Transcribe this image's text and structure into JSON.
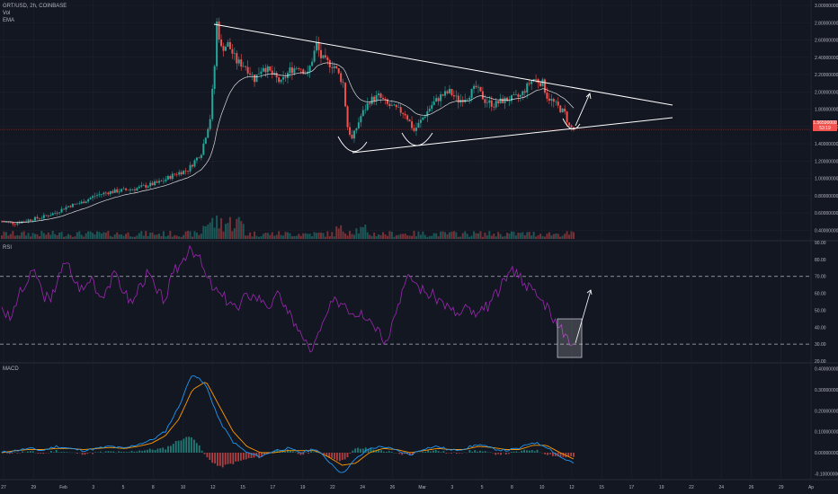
{
  "header": {
    "symbol": "GRT/USD, 2h, COINBASE",
    "indicator1": "Vol",
    "indicator2": "EMA"
  },
  "pane_labels": {
    "rsi": "RSI",
    "macd": "MACD"
  },
  "last_price": {
    "value": "1.56590000",
    "countdown": "53:19",
    "color": "#ef5350"
  },
  "colors": {
    "background": "#131722",
    "grid": "#1e222d",
    "bull": "#26a69a",
    "bear": "#ef5350",
    "rsi_line": "#9c27b0",
    "macd_line": "#2196f3",
    "signal_line": "#ff9800",
    "ema_line": "#ffffff",
    "drawing": "#ffffff"
  },
  "chart_data": [
    {
      "type": "candlestick",
      "pane": "price",
      "title": "GRT/USD, 2h, COINBASE",
      "ylim": [
        0.3,
        3.0
      ],
      "y_ticks": [
        "3.00000000",
        "2.80000000",
        "2.60000000",
        "2.40000000",
        "2.20000000",
        "2.00000000",
        "1.80000000",
        "1.60000000",
        "1.40000000",
        "1.20000000",
        "1.00000000",
        "0.80000000",
        "0.60000000",
        "0.40000000"
      ],
      "x_ticks": [
        "27",
        "29",
        "Feb",
        "3",
        "5",
        "8",
        "10",
        "12",
        "15",
        "17",
        "19",
        "22",
        "24",
        "26",
        "Mar",
        "3",
        "5",
        "8",
        "10",
        "12",
        "15",
        "17",
        "19",
        "22",
        "24",
        "26",
        "29",
        "Ap"
      ],
      "path_points": [
        [
          0,
          0.5
        ],
        [
          6,
          0.48
        ],
        [
          12,
          0.52
        ],
        [
          18,
          0.55
        ],
        [
          24,
          0.6
        ],
        [
          30,
          0.68
        ],
        [
          36,
          0.72
        ],
        [
          42,
          0.8
        ],
        [
          48,
          0.84
        ],
        [
          54,
          0.86
        ],
        [
          60,
          0.88
        ],
        [
          66,
          0.92
        ],
        [
          72,
          0.96
        ],
        [
          78,
          1.05
        ],
        [
          84,
          1.1
        ],
        [
          90,
          1.3
        ],
        [
          94,
          1.7
        ],
        [
          96,
          2.3
        ],
        [
          97,
          2.8
        ],
        [
          99,
          2.5
        ],
        [
          102,
          2.55
        ],
        [
          106,
          2.35
        ],
        [
          110,
          2.3
        ],
        [
          114,
          2.15
        ],
        [
          118,
          2.3
        ],
        [
          122,
          2.2
        ],
        [
          126,
          2.1
        ],
        [
          130,
          2.25
        ],
        [
          134,
          2.3
        ],
        [
          138,
          2.2
        ],
        [
          142,
          2.55
        ],
        [
          144,
          2.4
        ],
        [
          146,
          2.35
        ],
        [
          150,
          2.3
        ],
        [
          154,
          2.1
        ],
        [
          156,
          1.6
        ],
        [
          158,
          1.45
        ],
        [
          162,
          1.72
        ],
        [
          166,
          1.9
        ],
        [
          170,
          1.95
        ],
        [
          174,
          1.85
        ],
        [
          178,
          1.8
        ],
        [
          182,
          1.75
        ],
        [
          186,
          1.55
        ],
        [
          190,
          1.7
        ],
        [
          194,
          1.85
        ],
        [
          198,
          1.95
        ],
        [
          202,
          2.0
        ],
        [
          206,
          1.9
        ],
        [
          210,
          1.95
        ],
        [
          214,
          2.05
        ],
        [
          218,
          1.9
        ],
        [
          222,
          1.85
        ],
        [
          226,
          1.9
        ],
        [
          230,
          1.92
        ],
        [
          234,
          1.95
        ],
        [
          238,
          2.1
        ],
        [
          240,
          2.15
        ],
        [
          244,
          2.1
        ],
        [
          246,
          1.95
        ],
        [
          250,
          1.85
        ],
        [
          254,
          1.75
        ],
        [
          256,
          1.6
        ],
        [
          258,
          1.57
        ]
      ],
      "volume_scale": [
        0,
        1
      ],
      "drawings": {
        "triangle_upper": [
          [
            2.85
          ],
          [
            2.0
          ]
        ],
        "triangle_lower": [
          [
            1.35
          ],
          [
            1.9
          ]
        ],
        "arcs": 3,
        "arrow": "up"
      }
    },
    {
      "type": "line",
      "pane": "rsi",
      "title": "RSI",
      "ylim": [
        20,
        90
      ],
      "y_ticks": [
        "90.00",
        "80.00",
        "70.00",
        "60.00",
        "50.00",
        "40.00",
        "30.00",
        "20.00"
      ],
      "bands": [
        70,
        30
      ],
      "values": [
        52,
        44,
        58,
        65,
        74,
        60,
        55,
        72,
        78,
        66,
        62,
        70,
        58,
        64,
        72,
        60,
        54,
        66,
        72,
        60,
        56,
        72,
        78,
        88,
        82,
        70,
        62,
        58,
        55,
        50,
        60,
        58,
        56,
        52,
        60,
        48,
        42,
        32,
        26,
        38,
        50,
        56,
        54,
        48,
        50,
        45,
        40,
        32,
        46,
        62,
        70,
        64,
        60,
        58,
        55,
        50,
        47,
        52,
        46,
        50,
        56,
        62,
        72,
        74,
        66,
        62,
        56,
        52,
        40,
        36,
        30
      ]
    },
    {
      "type": "line",
      "pane": "macd",
      "title": "MACD",
      "ylim": [
        -0.12,
        0.42
      ],
      "y_ticks": [
        "0.40000000",
        "0.30000000",
        "0.20000000",
        "0.10000000",
        "0.00000000",
        "-0.10000000"
      ],
      "series": [
        {
          "values": [
            0.0,
            0.01,
            0.02,
            0.01,
            0.03,
            0.02,
            0.01,
            0.02,
            0.03,
            0.02,
            0.04,
            0.06,
            0.1,
            0.22,
            0.38,
            0.32,
            0.15,
            0.05,
            0.0,
            -0.02,
            0.01,
            0.02,
            0.0,
            0.02,
            -0.04,
            -0.1,
            -0.03,
            0.02,
            0.03,
            0.01,
            -0.01,
            0.02,
            0.03,
            0.01,
            0.02,
            0.04,
            0.02,
            0.01,
            0.02,
            0.05,
            0.03,
            -0.02,
            -0.05
          ]
        },
        {
          "values": [
            0.0,
            0.01,
            0.015,
            0.015,
            0.02,
            0.02,
            0.015,
            0.02,
            0.025,
            0.02,
            0.03,
            0.045,
            0.08,
            0.16,
            0.3,
            0.34,
            0.22,
            0.1,
            0.03,
            0.0,
            0.0,
            0.01,
            0.01,
            0.01,
            -0.02,
            -0.06,
            -0.05,
            0.0,
            0.02,
            0.015,
            0.0,
            0.01,
            0.02,
            0.015,
            0.015,
            0.03,
            0.025,
            0.015,
            0.015,
            0.035,
            0.035,
            0.0,
            -0.03
          ]
        }
      ]
    }
  ]
}
